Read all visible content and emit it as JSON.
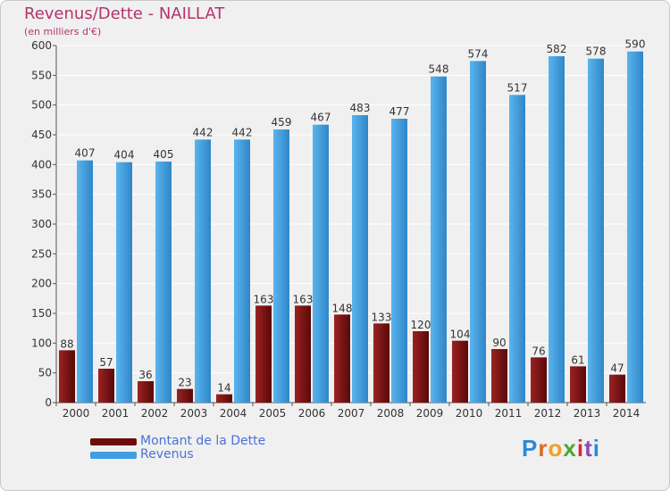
{
  "chart_data": {
    "type": "bar",
    "title": "Revenus/Dette - NAILLAT",
    "subtitle": "(en milliers d'€)",
    "categories": [
      "2000",
      "2001",
      "2002",
      "2003",
      "2004",
      "2005",
      "2006",
      "2007",
      "2008",
      "2009",
      "2010",
      "2011",
      "2012",
      "2013",
      "2014"
    ],
    "series": [
      {
        "name": "Montant de la Dette",
        "color": "#7a1010",
        "values": [
          88,
          57,
          36,
          23,
          14,
          163,
          163,
          148,
          133,
          120,
          104,
          90,
          76,
          61,
          47
        ]
      },
      {
        "name": "Revenus",
        "color": "#3f9ee0",
        "values": [
          407,
          404,
          405,
          442,
          442,
          459,
          467,
          483,
          477,
          548,
          574,
          517,
          582,
          578,
          590
        ]
      }
    ],
    "ylim": [
      0,
      600
    ],
    "yticks": [
      0,
      50,
      100,
      150,
      200,
      250,
      300,
      350,
      400,
      450,
      500,
      550,
      600
    ],
    "grid": true,
    "legend": "bottom-left"
  },
  "legend": {
    "items": [
      {
        "label": "Montant de la Dette",
        "color": "#6b0d0d"
      },
      {
        "label": "Revenus",
        "color": "#3f9ee0"
      }
    ]
  },
  "logo": {
    "text": "Proxiti"
  }
}
